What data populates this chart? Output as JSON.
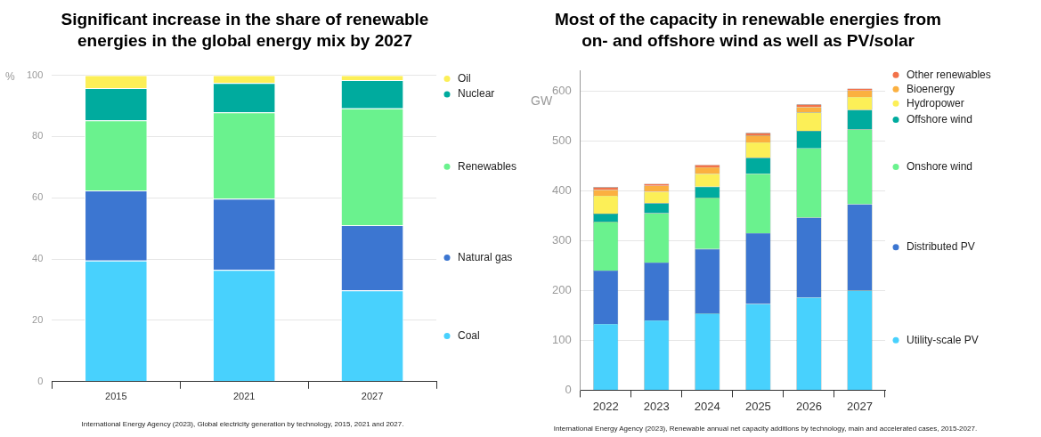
{
  "chart_data": [
    {
      "type": "bar",
      "title": "Significant increase in the share of renewable energies in the global energy mix by 2027",
      "ylabel": "%",
      "categories": [
        "2015",
        "2021",
        "2027"
      ],
      "stacked": true,
      "ylim": [
        0,
        100
      ],
      "yticks": [
        0,
        20,
        40,
        60,
        80,
        100
      ],
      "grid": "y",
      "legend": "right",
      "series": [
        {
          "name": "Coal",
          "color": "#48d1fd",
          "values": [
            39.5,
            36.5,
            29.8
          ]
        },
        {
          "name": "Natural gas",
          "color": "#3c76d1",
          "values": [
            22.9,
            23.2,
            21.3
          ]
        },
        {
          "name": "Renewables",
          "color": "#6af28e",
          "values": [
            22.9,
            28.2,
            38.1
          ]
        },
        {
          "name": "Nuclear",
          "color": "#00ab9e",
          "values": [
            10.5,
            9.6,
            9.2
          ]
        },
        {
          "name": "Oil",
          "color": "#fcef57",
          "values": [
            4.2,
            2.5,
            1.6
          ]
        }
      ],
      "annotations": [
        "International Energy Agency (2023), Global electricity generation by technology, 2015, 2021 and 2027."
      ]
    },
    {
      "type": "bar",
      "title": "Most of the capacity in renewable energies from on- and offshore wind as well as PV/solar",
      "ylabel": "GW",
      "categories": [
        "2022",
        "2023",
        "2024",
        "2025",
        "2026",
        "2027"
      ],
      "stacked": true,
      "ylim": [
        0,
        640
      ],
      "yticks": [
        0,
        100,
        200,
        300,
        400,
        500,
        600
      ],
      "grid": "y",
      "legend": "right",
      "series": [
        {
          "name": "Utility-scale PV",
          "color": "#48d1fd",
          "values": [
            133,
            140,
            154,
            173,
            186,
            200
          ]
        },
        {
          "name": "Distributed PV",
          "color": "#3c76d1",
          "values": [
            107,
            116,
            129,
            142,
            160,
            173
          ]
        },
        {
          "name": "Onshore wind",
          "color": "#6af28e",
          "values": [
            98,
            99,
            103,
            119,
            139,
            150
          ]
        },
        {
          "name": "Offshore wind",
          "color": "#00ab9e",
          "values": [
            16,
            20,
            22,
            32,
            35,
            39
          ]
        },
        {
          "name": "Hydropower",
          "color": "#fcef57",
          "values": [
            36,
            23,
            26,
            31,
            37,
            26
          ]
        },
        {
          "name": "Bioenergy",
          "color": "#fbb040",
          "values": [
            12,
            12,
            13,
            14,
            11,
            13
          ]
        },
        {
          "name": "Other renewables",
          "color": "#f2724a",
          "values": [
            5,
            4,
            5,
            5,
            5,
            4
          ]
        }
      ],
      "annotations": [
        "International Energy Agency (2023), Renewable annual net capacity additions by technology, main and accelerated cases, 2015-2027."
      ]
    }
  ]
}
